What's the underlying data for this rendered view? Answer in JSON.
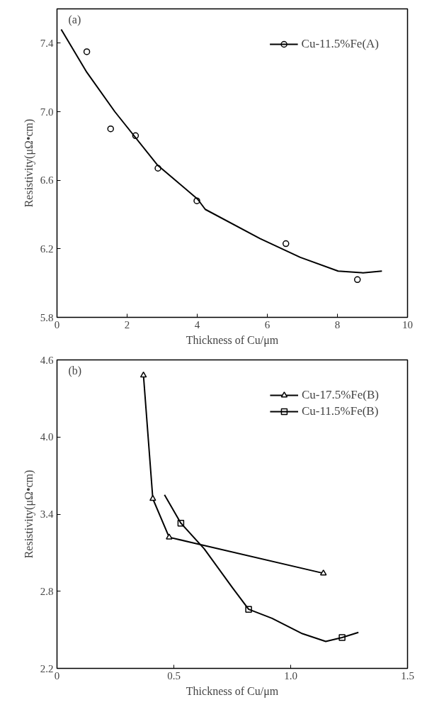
{
  "chart_data": [
    {
      "type": "scatter",
      "annotations": [
        "(a)"
      ],
      "xlabel": "Thickness of Cu/μm",
      "ylabel": "Resistivity(μΩ•cm)",
      "xlim": [
        0,
        10
      ],
      "ylim": [
        5.8,
        7.6
      ],
      "xticks": [
        0,
        2,
        4,
        6,
        8,
        10
      ],
      "yticks": [
        5.8,
        6.2,
        6.6,
        {
          "value": 7.0,
          "label": "7.0"
        },
        7.4
      ],
      "grid": false,
      "legend": "top right",
      "series": [
        {
          "name": "Cu-11.5%Fe(A)",
          "marker": "circle",
          "color": "#000000",
          "x": [
            0.85,
            1.53,
            2.24,
            2.88,
            3.99,
            6.53,
            8.57
          ],
          "values": [
            7.35,
            6.9,
            6.86,
            6.67,
            6.48,
            6.23,
            6.02
          ]
        },
        {
          "type": "line",
          "color": "#000000",
          "x": [
            0.12,
            0.85,
            1.65,
            2.86,
            4.01,
            4.23,
            5.79,
            6.94,
            8.02,
            8.73,
            9.27
          ],
          "values": [
            7.48,
            7.23,
            7.0,
            6.69,
            6.49,
            6.43,
            6.26,
            6.15,
            6.07,
            6.06,
            6.07
          ]
        }
      ]
    },
    {
      "type": "line",
      "annotations": [
        "(b)"
      ],
      "xlabel": "Thickness of Cu/μm",
      "ylabel": "Resistivity(μΩ•cm)",
      "xlim": [
        0,
        1.5
      ],
      "ylim": [
        2.2,
        4.6
      ],
      "xticks": [
        0,
        {
          "value": 0.5,
          "label": "0.5"
        },
        {
          "value": 1.0,
          "label": "1.0"
        },
        {
          "value": 1.5,
          "label": "1.5"
        }
      ],
      "yticks": [
        2.2,
        2.8,
        3.4,
        {
          "value": 4.0,
          "label": "4.0"
        },
        4.6
      ],
      "grid": false,
      "legend": "top right",
      "series": [
        {
          "name": "Cu-17.5%Fe(B)",
          "marker": "triangle",
          "color": "#000000",
          "x": [
            0.37,
            0.41,
            0.48,
            1.14
          ],
          "values": [
            4.48,
            3.52,
            3.22,
            2.94
          ]
        },
        {
          "name": "Cu-11.5%Fe(B)",
          "type": "scatter",
          "marker": "square",
          "color": "#000000",
          "x": [
            0.53,
            0.82,
            1.22
          ],
          "values": [
            3.33,
            2.66,
            2.44
          ]
        },
        {
          "type": "line",
          "color": "#000000",
          "x": [
            0.46,
            0.53,
            0.63,
            0.75,
            0.82,
            0.92,
            1.05,
            1.15,
            1.22,
            1.29
          ],
          "values": [
            3.55,
            3.33,
            3.13,
            2.83,
            2.66,
            2.59,
            2.47,
            2.41,
            2.44,
            2.48
          ]
        }
      ]
    }
  ]
}
